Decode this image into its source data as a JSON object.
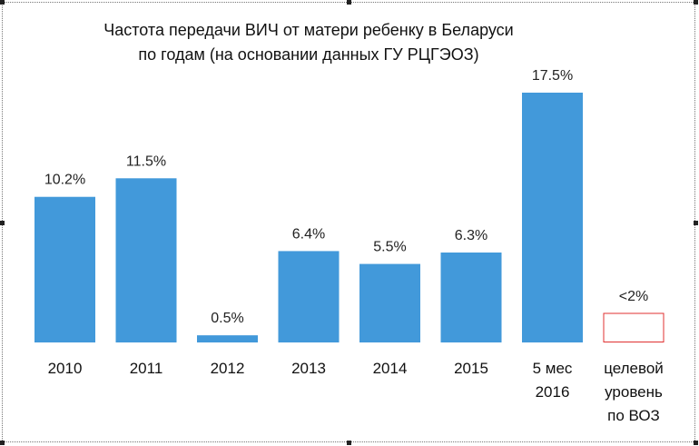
{
  "chart_data": {
    "type": "bar",
    "title_lines": [
      "Частота передачи ВИЧ от матери ребенку в Беларуси",
      "по годам (на основании данных ГУ РЦГЭОЗ)"
    ],
    "categories": [
      [
        "2010"
      ],
      [
        "2011"
      ],
      [
        "2012"
      ],
      [
        "2013"
      ],
      [
        "2014"
      ],
      [
        "2015"
      ],
      [
        "5 мес",
        "2016"
      ],
      [
        "целевой",
        "уровень",
        "по ВОЗ"
      ]
    ],
    "values": [
      10.2,
      11.5,
      0.5,
      6.4,
      5.5,
      6.3,
      17.5,
      2
    ],
    "data_labels": [
      "10.2%",
      "11.5%",
      "0.5%",
      "6.4%",
      "5.5%",
      "6.3%",
      "17.5%",
      "<2%"
    ],
    "target_index": 7,
    "ylim": [
      0,
      17.5
    ],
    "grid": false,
    "colors": {
      "bar": "#4299DA",
      "target_outline": "#E03030"
    }
  }
}
